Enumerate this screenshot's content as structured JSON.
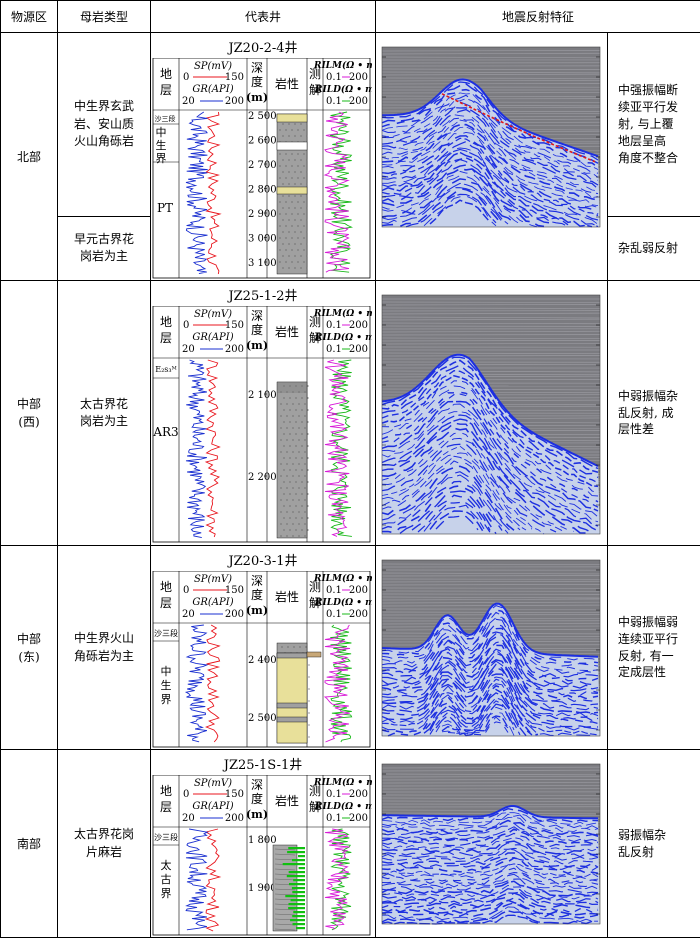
{
  "headers": {
    "region": "物源区",
    "rock": "母岩类型",
    "well": "代表井",
    "seismic": "地震反射特征"
  },
  "log_header": {
    "strata_chars": [
      "地",
      "层"
    ],
    "sp_label": "SP(mV)",
    "sp_min": "0",
    "sp_max": "150",
    "gr_label": "GR(API)",
    "gr_min": "20",
    "gr_max": "200",
    "depth_chars": [
      "深",
      "度"
    ],
    "depth_unit": "(m)",
    "lith_label": "岩性",
    "interp_chars": [
      "测",
      "解"
    ],
    "rilm_label": "RILM(Ω • m)",
    "rild_label": "RILD(Ω • m)",
    "res_min": "0.1",
    "res_max": "200"
  },
  "rows": [
    {
      "region": "北部",
      "region_sub": "",
      "rock": "中生界玄武岩、安山质火山角砾岩",
      "rock_lines": [
        "中生界玄武",
        "岩、安山质",
        "火山角砾岩"
      ],
      "feature_lines": [
        "中强振幅断",
        "续亚平行发",
        "射, 与上覆",
        "地层呈高",
        "角度不整合"
      ],
      "well": "JZ20-2-4井",
      "strata": [
        "沙三段",
        "中生界",
        "PT"
      ],
      "depths": [
        "2 500",
        "2 600",
        "2 700",
        "2 800",
        "2 900",
        "3 000",
        "3 100"
      ]
    },
    {
      "rock_lines": [
        "早元古界花",
        "岗岩为主"
      ],
      "feature_lines": [
        "杂乱弱反射"
      ]
    },
    {
      "region": "中部",
      "region_sub": "(西)",
      "rock_lines": [
        "太古界花",
        "岗岩为主"
      ],
      "feature_lines": [
        "中弱振幅杂",
        "乱反射, 成",
        "层性差"
      ],
      "well": "JZ25-1-2井",
      "strata": [
        "E₂s₃ᴹ",
        "AR3"
      ],
      "depths": [
        "2 100",
        "2 200"
      ]
    },
    {
      "region": "中部",
      "region_sub": "(东)",
      "rock_lines": [
        "中生界火山",
        "角砾岩为主"
      ],
      "feature_lines": [
        "中弱振幅弱",
        "连续亚平行",
        "反射, 有一",
        "定成层性"
      ],
      "well": "JZ20-3-1井",
      "strata": [
        "沙三段",
        "中生界"
      ],
      "depths": [
        "2 400",
        "2 500"
      ]
    },
    {
      "region": "南部",
      "region_sub": "",
      "rock_lines": [
        "太古界花岗",
        "片麻岩"
      ],
      "feature_lines": [
        "弱振幅杂",
        "乱反射"
      ],
      "well": "JZ25-1S-1井",
      "strata": [
        "沙三段",
        "太古界"
      ],
      "depths": [
        "1 800",
        "1 900"
      ]
    }
  ],
  "colors": {
    "sp_curve": "#e8141c",
    "gr_curve": "#1a2fd0",
    "rilm_curve": "#d81ad8",
    "rild_curve": "#18b818",
    "sandstone": "#e8e09a",
    "seismic_blue": "#1d2fe0",
    "unconformity": "#e01818"
  }
}
